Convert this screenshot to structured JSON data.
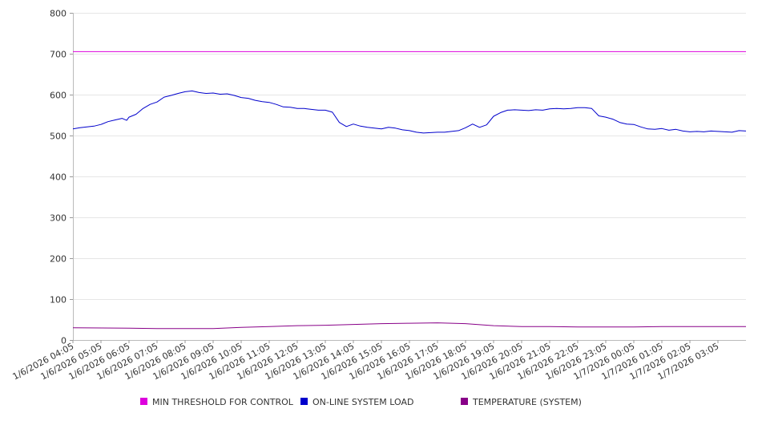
{
  "chart_data": {
    "type": "line",
    "title": "",
    "xlabel": "",
    "ylabel": "",
    "ylim": [
      0,
      800
    ],
    "yticks": [
      0,
      100,
      200,
      300,
      400,
      500,
      600,
      700,
      800
    ],
    "grid": true,
    "legend_position": "bottom",
    "x_start": "1/6/2026 04:05",
    "x_end": "1/7/2026 04:05",
    "x_tick_labels": [
      "1/6/2026 04:05",
      "1/6/2026 05:05",
      "1/6/2026 06:05",
      "1/6/2026 07:05",
      "1/6/2026 08:05",
      "1/6/2026 09:05",
      "1/6/2026 10:05",
      "1/6/2026 11:05",
      "1/6/2026 12:05",
      "1/6/2026 13:05",
      "1/6/2026 14:05",
      "1/6/2026 15:05",
      "1/6/2026 16:05",
      "1/6/2026 17:05",
      "1/6/2026 18:05",
      "1/6/2026 19:05",
      "1/6/2026 20:05",
      "1/6/2026 21:05",
      "1/6/2026 22:05",
      "1/6/2026 23:05",
      "1/7/2026 00:05",
      "1/7/2026 01:05",
      "1/7/2026 02:05",
      "1/7/2026 03:05"
    ],
    "series": [
      {
        "name": "MIN THRESHOLD FOR CONTROL",
        "color": "#dd00dd",
        "points": [
          [
            "1/6/2026 04:05",
            705
          ],
          [
            "1/7/2026 04:05",
            705
          ]
        ]
      },
      {
        "name": "ON-LINE SYSTEM LOAD",
        "color": "#0000cc",
        "points": [
          [
            "1/6/2026 04:05",
            516
          ],
          [
            "1/6/2026 04:20",
            519
          ],
          [
            "1/6/2026 04:35",
            521
          ],
          [
            "1/6/2026 04:50",
            523
          ],
          [
            "1/6/2026 05:05",
            527
          ],
          [
            "1/6/2026 05:20",
            534
          ],
          [
            "1/6/2026 05:35",
            538
          ],
          [
            "1/6/2026 05:50",
            542
          ],
          [
            "1/6/2026 06:00",
            537
          ],
          [
            "1/6/2026 06:05",
            545
          ],
          [
            "1/6/2026 06:20",
            552
          ],
          [
            "1/6/2026 06:35",
            566
          ],
          [
            "1/6/2026 06:50",
            576
          ],
          [
            "1/6/2026 07:05",
            582
          ],
          [
            "1/6/2026 07:20",
            594
          ],
          [
            "1/6/2026 07:35",
            598
          ],
          [
            "1/6/2026 07:50",
            603
          ],
          [
            "1/6/2026 08:05",
            607
          ],
          [
            "1/6/2026 08:20",
            609
          ],
          [
            "1/6/2026 08:35",
            605
          ],
          [
            "1/6/2026 08:50",
            603
          ],
          [
            "1/6/2026 09:05",
            604
          ],
          [
            "1/6/2026 09:20",
            601
          ],
          [
            "1/6/2026 09:35",
            602
          ],
          [
            "1/6/2026 09:50",
            598
          ],
          [
            "1/6/2026 10:05",
            593
          ],
          [
            "1/6/2026 10:20",
            591
          ],
          [
            "1/6/2026 10:35",
            586
          ],
          [
            "1/6/2026 10:50",
            583
          ],
          [
            "1/6/2026 11:05",
            581
          ],
          [
            "1/6/2026 11:20",
            576
          ],
          [
            "1/6/2026 11:35",
            570
          ],
          [
            "1/6/2026 11:50",
            569
          ],
          [
            "1/6/2026 12:05",
            566
          ],
          [
            "1/6/2026 12:20",
            566
          ],
          [
            "1/6/2026 12:35",
            564
          ],
          [
            "1/6/2026 12:50",
            562
          ],
          [
            "1/6/2026 13:05",
            562
          ],
          [
            "1/6/2026 13:20",
            557
          ],
          [
            "1/6/2026 13:35",
            532
          ],
          [
            "1/6/2026 13:50",
            522
          ],
          [
            "1/6/2026 14:05",
            528
          ],
          [
            "1/6/2026 14:20",
            523
          ],
          [
            "1/6/2026 14:35",
            520
          ],
          [
            "1/6/2026 14:50",
            518
          ],
          [
            "1/6/2026 15:05",
            516
          ],
          [
            "1/6/2026 15:20",
            520
          ],
          [
            "1/6/2026 15:35",
            518
          ],
          [
            "1/6/2026 15:50",
            514
          ],
          [
            "1/6/2026 16:05",
            512
          ],
          [
            "1/6/2026 16:20",
            508
          ],
          [
            "1/6/2026 16:35",
            506
          ],
          [
            "1/6/2026 16:50",
            507
          ],
          [
            "1/6/2026 17:05",
            508
          ],
          [
            "1/6/2026 17:20",
            508
          ],
          [
            "1/6/2026 17:35",
            510
          ],
          [
            "1/6/2026 17:50",
            512
          ],
          [
            "1/6/2026 18:05",
            519
          ],
          [
            "1/6/2026 18:20",
            528
          ],
          [
            "1/6/2026 18:35",
            520
          ],
          [
            "1/6/2026 18:50",
            526
          ],
          [
            "1/6/2026 19:05",
            547
          ],
          [
            "1/6/2026 19:20",
            556
          ],
          [
            "1/6/2026 19:35",
            562
          ],
          [
            "1/6/2026 19:50",
            563
          ],
          [
            "1/6/2026 20:05",
            562
          ],
          [
            "1/6/2026 20:20",
            561
          ],
          [
            "1/6/2026 20:35",
            563
          ],
          [
            "1/6/2026 20:50",
            562
          ],
          [
            "1/6/2026 21:05",
            565
          ],
          [
            "1/6/2026 21:20",
            566
          ],
          [
            "1/6/2026 21:35",
            565
          ],
          [
            "1/6/2026 21:50",
            566
          ],
          [
            "1/6/2026 22:05",
            568
          ],
          [
            "1/6/2026 22:20",
            568
          ],
          [
            "1/6/2026 22:35",
            566
          ],
          [
            "1/6/2026 22:50",
            548
          ],
          [
            "1/6/2026 23:05",
            545
          ],
          [
            "1/6/2026 23:20",
            540
          ],
          [
            "1/6/2026 23:35",
            532
          ],
          [
            "1/6/2026 23:50",
            528
          ],
          [
            "1/7/2026 00:05",
            527
          ],
          [
            "1/7/2026 00:20",
            521
          ],
          [
            "1/7/2026 00:35",
            516
          ],
          [
            "1/7/2026 00:50",
            515
          ],
          [
            "1/7/2026 01:05",
            517
          ],
          [
            "1/7/2026 01:20",
            513
          ],
          [
            "1/7/2026 01:35",
            515
          ],
          [
            "1/7/2026 01:50",
            511
          ],
          [
            "1/7/2026 02:05",
            509
          ],
          [
            "1/7/2026 02:20",
            510
          ],
          [
            "1/7/2026 02:35",
            509
          ],
          [
            "1/7/2026 02:50",
            511
          ],
          [
            "1/7/2026 03:05",
            510
          ],
          [
            "1/7/2026 03:20",
            509
          ],
          [
            "1/7/2026 03:35",
            508
          ],
          [
            "1/7/2026 03:50",
            512
          ],
          [
            "1/7/2026 04:05",
            511
          ]
        ]
      },
      {
        "name": "TEMPERATURE (SYSTEM)",
        "color": "#880088",
        "points": [
          [
            "1/6/2026 04:05",
            30
          ],
          [
            "1/6/2026 06:05",
            29
          ],
          [
            "1/6/2026 07:05",
            28
          ],
          [
            "1/6/2026 09:05",
            28
          ],
          [
            "1/6/2026 10:05",
            31
          ],
          [
            "1/6/2026 11:05",
            33
          ],
          [
            "1/6/2026 12:05",
            35
          ],
          [
            "1/6/2026 13:05",
            36
          ],
          [
            "1/6/2026 14:05",
            38
          ],
          [
            "1/6/2026 15:05",
            40
          ],
          [
            "1/6/2026 16:05",
            41
          ],
          [
            "1/6/2026 17:05",
            42
          ],
          [
            "1/6/2026 18:05",
            40
          ],
          [
            "1/6/2026 19:05",
            35
          ],
          [
            "1/6/2026 20:05",
            33
          ],
          [
            "1/6/2026 21:05",
            33
          ],
          [
            "1/6/2026 22:05",
            32
          ],
          [
            "1/6/2026 23:05",
            32
          ],
          [
            "1/7/2026 00:05",
            32
          ],
          [
            "1/7/2026 01:05",
            33
          ],
          [
            "1/7/2026 02:05",
            33
          ],
          [
            "1/7/2026 03:05",
            33
          ],
          [
            "1/7/2026 04:05",
            33
          ]
        ]
      }
    ]
  }
}
